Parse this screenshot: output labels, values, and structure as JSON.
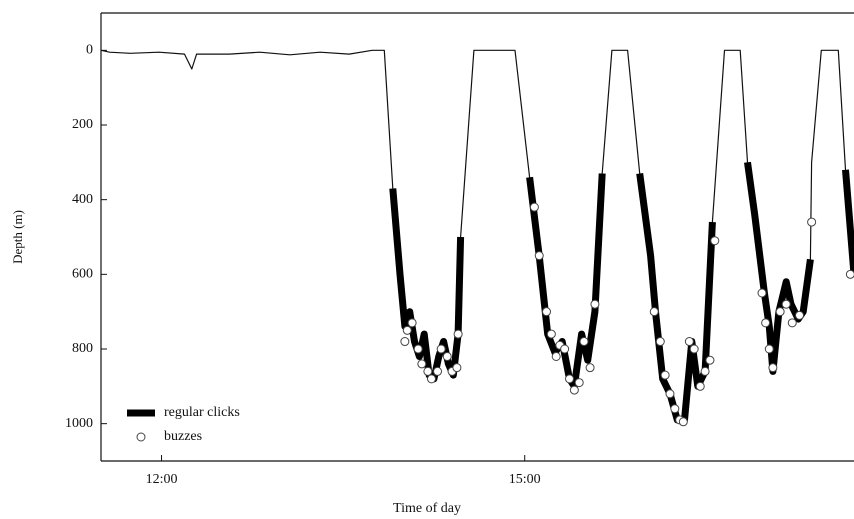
{
  "chart_data": {
    "type": "line",
    "x_label": "Time of day",
    "y_label": "Depth (m)",
    "xlim": [
      11.5,
      17.72
    ],
    "xticks": [
      {
        "value": 12,
        "label": "12:00"
      },
      {
        "value": 15,
        "label": "15:00"
      }
    ],
    "ylim": [
      -100,
      1100
    ],
    "y_inverted": true,
    "yticks": [
      0,
      200,
      400,
      600,
      800,
      1000
    ],
    "legend": "lower left",
    "x": [
      11.5,
      11.57,
      11.74,
      11.98,
      12.19,
      12.25,
      12.29,
      12.56,
      12.81,
      13.06,
      13.31,
      13.55,
      13.74,
      13.84,
      13.91,
      13.97,
      14.01,
      14.05,
      14.09,
      14.13,
      14.17,
      14.21,
      14.25,
      14.29,
      14.33,
      14.37,
      14.41,
      14.45,
      14.47,
      14.58,
      14.79,
      14.92,
      15.04,
      15.12,
      15.19,
      15.25,
      15.31,
      15.37,
      15.41,
      15.47,
      15.52,
      15.58,
      15.64,
      15.72,
      15.85,
      15.95,
      16.04,
      16.08,
      16.14,
      16.2,
      16.26,
      16.32,
      16.38,
      16.43,
      16.49,
      16.55,
      16.65,
      16.78,
      16.84,
      16.9,
      16.98,
      17.02,
      17.05,
      17.1,
      17.16,
      17.2,
      17.26,
      17.3,
      17.36,
      17.37,
      17.45,
      17.59,
      17.65,
      17.72
    ],
    "series": [
      {
        "color": "#111111",
        "width": 1.2,
        "values": [
          0,
          5,
          8,
          5,
          10,
          50,
          10,
          10,
          5,
          12,
          5,
          10,
          0,
          0,
          370,
          600,
          740,
          700,
          780,
          820,
          760,
          870,
          880,
          820,
          780,
          840,
          870,
          760,
          500,
          0,
          0,
          0,
          340,
          550,
          760,
          810,
          780,
          880,
          900,
          760,
          830,
          700,
          330,
          0,
          0,
          330,
          550,
          700,
          880,
          920,
          990,
          990,
          780,
          900,
          860,
          460,
          0,
          0,
          300,
          440,
          650,
          740,
          860,
          700,
          620,
          680,
          720,
          700,
          560,
          300,
          0,
          0,
          320,
          600
        ]
      },
      {
        "name": "regular clicks",
        "color": "#000000",
        "width": 7,
        "values": [
          null,
          null,
          null,
          null,
          null,
          null,
          null,
          null,
          null,
          null,
          null,
          null,
          null,
          null,
          370,
          600,
          740,
          700,
          780,
          820,
          760,
          870,
          880,
          820,
          780,
          840,
          870,
          760,
          500,
          null,
          null,
          null,
          340,
          550,
          760,
          810,
          780,
          880,
          900,
          760,
          830,
          700,
          330,
          null,
          null,
          330,
          550,
          700,
          880,
          920,
          990,
          990,
          780,
          900,
          860,
          460,
          null,
          null,
          300,
          440,
          650,
          740,
          860,
          700,
          620,
          680,
          720,
          700,
          560,
          null,
          null,
          null,
          320,
          600
        ]
      },
      {
        "name": "buzzes",
        "type": "scatter",
        "color": "#ffffff",
        "x": [
          14.01,
          14.03,
          14.07,
          14.12,
          14.15,
          14.2,
          14.23,
          14.28,
          14.31,
          14.36,
          14.4,
          14.44,
          14.45,
          15.08,
          15.12,
          15.18,
          15.22,
          15.26,
          15.29,
          15.33,
          15.37,
          15.41,
          15.45,
          15.49,
          15.54,
          15.58,
          16.07,
          16.12,
          16.16,
          16.2,
          16.24,
          16.28,
          16.31,
          16.36,
          16.4,
          16.45,
          16.49,
          16.53,
          16.57,
          16.96,
          16.99,
          17.02,
          17.05,
          17.11,
          17.16,
          17.21,
          17.27,
          17.37,
          17.69
        ],
        "values": [
          780,
          750,
          730,
          800,
          840,
          860,
          880,
          860,
          800,
          820,
          860,
          850,
          760,
          420,
          550,
          700,
          760,
          820,
          790,
          800,
          880,
          910,
          890,
          780,
          850,
          680,
          700,
          780,
          870,
          920,
          960,
          990,
          995,
          780,
          800,
          900,
          860,
          830,
          510,
          650,
          730,
          800,
          850,
          700,
          680,
          730,
          710,
          460,
          600
        ]
      }
    ]
  }
}
